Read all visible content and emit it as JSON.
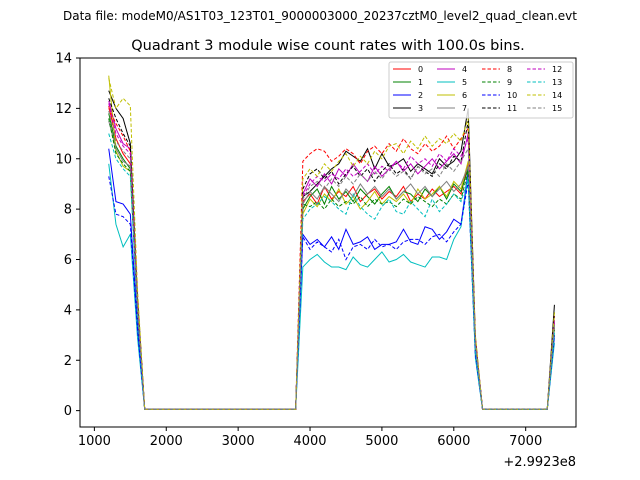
{
  "figure": {
    "suptitle": "Data file: modeM0/AS1T03_123T01_9000003000_20237cztM0_level2_quad_clean.evt"
  },
  "chart_data": {
    "type": "line",
    "title": "Quadrant 3 module wise count rates with 100.0s bins.",
    "xlabel": "",
    "ylabel": "",
    "x_offset_label": "+2.9923e8",
    "xlim": [
      800,
      7700
    ],
    "ylim": [
      -0.65,
      14
    ],
    "xticks": [
      1000,
      2000,
      3000,
      4000,
      5000,
      6000,
      7000
    ],
    "yticks": [
      0,
      2,
      4,
      6,
      8,
      10,
      12,
      14
    ],
    "x": [
      1200,
      1300,
      1400,
      1500,
      1600,
      1700,
      1800,
      1900,
      2000,
      2100,
      2200,
      2300,
      2400,
      2500,
      2600,
      2700,
      2800,
      2900,
      3000,
      3100,
      3200,
      3300,
      3400,
      3500,
      3600,
      3700,
      3800,
      3900,
      4000,
      4100,
      4200,
      4300,
      4400,
      4500,
      4600,
      4700,
      4800,
      4900,
      5000,
      5100,
      5200,
      5300,
      5400,
      5500,
      5600,
      5700,
      5800,
      5900,
      6000,
      6100,
      6200,
      6300,
      6400,
      6500,
      6600,
      6700,
      6800,
      6900,
      7000,
      7100,
      7200,
      7300,
      7400
    ],
    "legend_position": "upper-right",
    "series": [
      {
        "name": "0",
        "color": "#ff0000",
        "dash": "solid",
        "values": [
          12.1,
          10.8,
          10.2,
          9.8,
          4.2,
          0.05,
          0.05,
          0.05,
          0.05,
          0.05,
          0.05,
          0.05,
          0.05,
          0.05,
          0.05,
          0.05,
          0.05,
          0.05,
          0.05,
          0.05,
          0.05,
          0.05,
          0.05,
          0.05,
          0.05,
          0.05,
          0.05,
          8.3,
          8.6,
          8.2,
          8.9,
          8.4,
          8.7,
          8.5,
          8.9,
          8.3,
          8.6,
          8.8,
          8.4,
          8.7,
          8.5,
          8.9,
          8.3,
          8.6,
          8.4,
          8.8,
          8.5,
          8.7,
          8.9,
          8.6,
          9.8,
          2.7,
          0.05,
          0.05,
          0.05,
          0.05,
          0.05,
          0.05,
          0.05,
          0.05,
          0.05,
          0.05,
          3.5
        ]
      },
      {
        "name": "1",
        "color": "#008000",
        "dash": "solid",
        "values": [
          11.8,
          10.5,
          10.0,
          9.6,
          4.0,
          0.05,
          0.05,
          0.05,
          0.05,
          0.05,
          0.05,
          0.05,
          0.05,
          0.05,
          0.05,
          0.05,
          0.05,
          0.05,
          0.05,
          0.05,
          0.05,
          0.05,
          0.05,
          0.05,
          0.05,
          0.05,
          0.05,
          8.0,
          8.5,
          8.8,
          8.2,
          8.9,
          8.4,
          8.7,
          8.3,
          8.8,
          8.5,
          8.2,
          8.6,
          8.9,
          8.4,
          8.7,
          8.6,
          8.3,
          8.8,
          8.5,
          8.9,
          8.4,
          9.0,
          8.7,
          9.6,
          2.6,
          0.05,
          0.05,
          0.05,
          0.05,
          0.05,
          0.05,
          0.05,
          0.05,
          0.05,
          0.05,
          3.3
        ]
      },
      {
        "name": "2",
        "color": "#0000ff",
        "dash": "solid",
        "values": [
          10.4,
          8.3,
          8.2,
          7.8,
          3.4,
          0.05,
          0.05,
          0.05,
          0.05,
          0.05,
          0.05,
          0.05,
          0.05,
          0.05,
          0.05,
          0.05,
          0.05,
          0.05,
          0.05,
          0.05,
          0.05,
          0.05,
          0.05,
          0.05,
          0.05,
          0.05,
          0.05,
          7.0,
          6.6,
          6.8,
          6.5,
          6.9,
          6.4,
          7.2,
          6.6,
          6.7,
          6.9,
          6.4,
          6.6,
          6.6,
          6.7,
          7.2,
          6.7,
          6.6,
          7.3,
          7.2,
          6.8,
          7.1,
          7.6,
          7.4,
          9.5,
          2.3,
          0.05,
          0.05,
          0.05,
          0.05,
          0.05,
          0.05,
          0.05,
          0.05,
          0.05,
          0.05,
          3.0
        ]
      },
      {
        "name": "3",
        "color": "#000000",
        "dash": "solid",
        "values": [
          12.7,
          12.0,
          11.6,
          10.6,
          4.5,
          0.05,
          0.05,
          0.05,
          0.05,
          0.05,
          0.05,
          0.05,
          0.05,
          0.05,
          0.05,
          0.05,
          0.05,
          0.05,
          0.05,
          0.05,
          0.05,
          0.05,
          0.05,
          0.05,
          0.05,
          0.05,
          0.05,
          8.5,
          8.7,
          9.0,
          9.3,
          9.6,
          9.8,
          10.3,
          10.1,
          9.9,
          10.4,
          9.6,
          10.2,
          9.7,
          9.8,
          10.0,
          9.5,
          9.8,
          9.6,
          9.4,
          10.0,
          9.7,
          9.9,
          10.3,
          12.0,
          2.9,
          0.05,
          0.05,
          0.05,
          0.05,
          0.05,
          0.05,
          0.05,
          0.05,
          0.05,
          0.05,
          4.2
        ]
      },
      {
        "name": "4",
        "color": "#bf00bf",
        "dash": "solid",
        "values": [
          12.3,
          11.2,
          10.6,
          10.4,
          4.3,
          0.05,
          0.05,
          0.05,
          0.05,
          0.05,
          0.05,
          0.05,
          0.05,
          0.05,
          0.05,
          0.05,
          0.05,
          0.05,
          0.05,
          0.05,
          0.05,
          0.05,
          0.05,
          0.05,
          0.05,
          0.05,
          0.05,
          8.6,
          9.2,
          8.9,
          9.4,
          9.0,
          9.6,
          9.3,
          9.8,
          9.4,
          9.1,
          9.7,
          9.3,
          9.6,
          9.9,
          9.5,
          9.8,
          9.4,
          9.7,
          10.0,
          9.6,
          9.9,
          10.2,
          9.8,
          11.0,
          2.8,
          0.05,
          0.05,
          0.05,
          0.05,
          0.05,
          0.05,
          0.05,
          0.05,
          0.05,
          0.05,
          3.6
        ]
      },
      {
        "name": "5",
        "color": "#00bfbf",
        "dash": "solid",
        "values": [
          9.8,
          7.4,
          6.5,
          7.0,
          2.9,
          0.05,
          0.05,
          0.05,
          0.05,
          0.05,
          0.05,
          0.05,
          0.05,
          0.05,
          0.05,
          0.05,
          0.05,
          0.05,
          0.05,
          0.05,
          0.05,
          0.05,
          0.05,
          0.05,
          0.05,
          0.05,
          0.05,
          5.7,
          6.0,
          6.2,
          5.9,
          5.7,
          5.7,
          5.6,
          6.1,
          5.8,
          5.7,
          6.0,
          6.3,
          5.9,
          6.0,
          6.2,
          5.9,
          5.8,
          5.7,
          6.1,
          6.1,
          6.0,
          6.8,
          7.3,
          9.3,
          2.1,
          0.05,
          0.05,
          0.05,
          0.05,
          0.05,
          0.05,
          0.05,
          0.05,
          0.05,
          0.05,
          2.7
        ]
      },
      {
        "name": "6",
        "color": "#bfbf00",
        "dash": "solid",
        "values": [
          13.3,
          10.3,
          9.7,
          9.5,
          4.1,
          0.05,
          0.05,
          0.05,
          0.05,
          0.05,
          0.05,
          0.05,
          0.05,
          0.05,
          0.05,
          0.05,
          0.05,
          0.05,
          0.05,
          0.05,
          0.05,
          0.05,
          0.05,
          0.05,
          0.05,
          0.05,
          0.05,
          7.8,
          8.4,
          8.1,
          8.6,
          8.3,
          8.8,
          8.2,
          8.5,
          8.0,
          8.3,
          8.7,
          8.2,
          8.5,
          8.3,
          8.6,
          8.2,
          8.8,
          8.4,
          8.6,
          8.9,
          8.5,
          9.1,
          8.8,
          9.9,
          2.6,
          0.05,
          0.05,
          0.05,
          0.05,
          0.05,
          0.05,
          0.05,
          0.05,
          0.05,
          0.05,
          3.4
        ]
      },
      {
        "name": "7",
        "color": "#808080",
        "dash": "solid",
        "values": [
          11.5,
          10.4,
          9.9,
          9.7,
          4.1,
          0.05,
          0.05,
          0.05,
          0.05,
          0.05,
          0.05,
          0.05,
          0.05,
          0.05,
          0.05,
          0.05,
          0.05,
          0.05,
          0.05,
          0.05,
          0.05,
          0.05,
          0.05,
          0.05,
          0.05,
          0.05,
          0.05,
          8.2,
          8.7,
          8.4,
          8.9,
          8.6,
          8.3,
          8.8,
          8.5,
          9.0,
          8.6,
          8.9,
          8.5,
          8.8,
          8.4,
          8.7,
          9.0,
          8.6,
          8.9,
          8.5,
          8.8,
          9.1,
          8.7,
          9.0,
          9.7,
          2.6,
          0.05,
          0.05,
          0.05,
          0.05,
          0.05,
          0.05,
          0.05,
          0.05,
          0.05,
          0.05,
          3.4
        ]
      },
      {
        "name": "8",
        "color": "#ff0000",
        "dash": "dashed",
        "values": [
          12.0,
          11.4,
          10.9,
          10.3,
          4.4,
          0.05,
          0.05,
          0.05,
          0.05,
          0.05,
          0.05,
          0.05,
          0.05,
          0.05,
          0.05,
          0.05,
          0.05,
          0.05,
          0.05,
          0.05,
          0.05,
          0.05,
          0.05,
          0.05,
          0.05,
          0.05,
          0.05,
          9.9,
          10.2,
          10.4,
          10.3,
          9.9,
          10.1,
          10.4,
          10.2,
          9.8,
          10.3,
          10.5,
          10.2,
          10.6,
          10.3,
          10.8,
          10.4,
          10.2,
          10.6,
          10.3,
          10.5,
          10.9,
          10.4,
          10.8,
          11.2,
          2.9,
          0.05,
          0.05,
          0.05,
          0.05,
          0.05,
          0.05,
          0.05,
          0.05,
          0.05,
          0.05,
          3.8
        ]
      },
      {
        "name": "9",
        "color": "#008000",
        "dash": "dashed",
        "values": [
          11.6,
          10.2,
          9.8,
          9.5,
          3.9,
          0.05,
          0.05,
          0.05,
          0.05,
          0.05,
          0.05,
          0.05,
          0.05,
          0.05,
          0.05,
          0.05,
          0.05,
          0.05,
          0.05,
          0.05,
          0.05,
          0.05,
          0.05,
          0.05,
          0.05,
          0.05,
          0.05,
          8.2,
          8.1,
          8.3,
          8.0,
          8.4,
          8.1,
          8.3,
          8.2,
          8.5,
          8.1,
          8.4,
          8.2,
          8.3,
          8.1,
          8.4,
          8.2,
          8.5,
          8.3,
          8.1,
          8.4,
          8.2,
          8.6,
          8.4,
          9.5,
          2.5,
          0.05,
          0.05,
          0.05,
          0.05,
          0.05,
          0.05,
          0.05,
          0.05,
          0.05,
          0.05,
          3.2
        ]
      },
      {
        "name": "10",
        "color": "#0000ff",
        "dash": "dashed",
        "values": [
          9.3,
          7.8,
          7.7,
          7.4,
          3.2,
          0.05,
          0.05,
          0.05,
          0.05,
          0.05,
          0.05,
          0.05,
          0.05,
          0.05,
          0.05,
          0.05,
          0.05,
          0.05,
          0.05,
          0.05,
          0.05,
          0.05,
          0.05,
          0.05,
          0.05,
          0.05,
          0.05,
          6.9,
          6.4,
          6.7,
          6.5,
          6.3,
          6.8,
          6.0,
          6.5,
          6.6,
          6.4,
          6.8,
          6.5,
          6.6,
          6.4,
          6.7,
          6.8,
          6.8,
          6.6,
          6.9,
          7.0,
          6.7,
          7.1,
          7.4,
          9.1,
          2.2,
          0.05,
          0.05,
          0.05,
          0.05,
          0.05,
          0.05,
          0.05,
          0.05,
          0.05,
          0.05,
          2.9
        ]
      },
      {
        "name": "11",
        "color": "#000000",
        "dash": "dashed",
        "values": [
          12.4,
          11.6,
          11.0,
          10.5,
          4.4,
          0.05,
          0.05,
          0.05,
          0.05,
          0.05,
          0.05,
          0.05,
          0.05,
          0.05,
          0.05,
          0.05,
          0.05,
          0.05,
          0.05,
          0.05,
          0.05,
          0.05,
          0.05,
          0.05,
          0.05,
          0.05,
          0.05,
          8.8,
          9.4,
          9.6,
          9.2,
          9.5,
          9.0,
          9.4,
          9.7,
          9.3,
          9.6,
          9.1,
          9.5,
          9.8,
          9.4,
          9.6,
          9.2,
          9.7,
          9.5,
          9.3,
          9.8,
          9.6,
          10.1,
          9.9,
          11.5,
          2.8,
          0.05,
          0.05,
          0.05,
          0.05,
          0.05,
          0.05,
          0.05,
          0.05,
          0.05,
          0.05,
          3.9
        ]
      },
      {
        "name": "12",
        "color": "#bf00bf",
        "dash": "dashed",
        "values": [
          12.2,
          11.0,
          10.5,
          10.2,
          4.2,
          0.05,
          0.05,
          0.05,
          0.05,
          0.05,
          0.05,
          0.05,
          0.05,
          0.05,
          0.05,
          0.05,
          0.05,
          0.05,
          0.05,
          0.05,
          0.05,
          0.05,
          0.05,
          0.05,
          0.05,
          0.05,
          0.05,
          8.5,
          9.0,
          9.3,
          9.1,
          9.4,
          9.2,
          9.6,
          9.3,
          9.5,
          9.8,
          9.4,
          9.7,
          9.5,
          9.9,
          9.6,
          10.1,
          9.8,
          10.0,
          9.7,
          10.2,
          9.9,
          10.4,
          10.1,
          10.8,
          2.7,
          0.05,
          0.05,
          0.05,
          0.05,
          0.05,
          0.05,
          0.05,
          0.05,
          0.05,
          0.05,
          3.6
        ]
      },
      {
        "name": "13",
        "color": "#00bfbf",
        "dash": "dashed",
        "values": [
          11.0,
          10.0,
          9.6,
          9.3,
          3.8,
          0.05,
          0.05,
          0.05,
          0.05,
          0.05,
          0.05,
          0.05,
          0.05,
          0.05,
          0.05,
          0.05,
          0.05,
          0.05,
          0.05,
          0.05,
          0.05,
          0.05,
          0.05,
          0.05,
          0.05,
          0.05,
          0.05,
          7.6,
          8.0,
          8.2,
          8.5,
          8.3,
          8.0,
          7.8,
          8.6,
          8.1,
          7.8,
          7.6,
          8.1,
          8.4,
          7.9,
          7.8,
          8.3,
          8.0,
          7.7,
          8.4,
          7.9,
          8.2,
          8.6,
          8.3,
          9.2,
          2.4,
          0.05,
          0.05,
          0.05,
          0.05,
          0.05,
          0.05,
          0.05,
          0.05,
          0.05,
          0.05,
          3.1
        ]
      },
      {
        "name": "14",
        "color": "#bfbf00",
        "dash": "dashed",
        "values": [
          13.2,
          12.0,
          12.4,
          12.1,
          4.8,
          0.05,
          0.05,
          0.05,
          0.05,
          0.05,
          0.05,
          0.05,
          0.05,
          0.05,
          0.05,
          0.05,
          0.05,
          0.05,
          0.05,
          0.05,
          0.05,
          0.05,
          0.05,
          0.05,
          0.05,
          0.05,
          0.05,
          9.2,
          9.6,
          9.3,
          9.8,
          9.5,
          9.9,
          10.2,
          9.7,
          10.1,
          9.8,
          10.3,
          10.0,
          10.5,
          10.6,
          10.2,
          10.7,
          10.4,
          10.9,
          10.5,
          10.8,
          10.6,
          11.0,
          10.7,
          11.6,
          3.0,
          0.05,
          0.05,
          0.05,
          0.05,
          0.05,
          0.05,
          0.05,
          0.05,
          0.05,
          0.05,
          3.9
        ]
      },
      {
        "name": "15",
        "color": "#808080",
        "dash": "dashed",
        "values": [
          11.9,
          10.7,
          10.3,
          10.0,
          4.1,
          0.05,
          0.05,
          0.05,
          0.05,
          0.05,
          0.05,
          0.05,
          0.05,
          0.05,
          0.05,
          0.05,
          0.05,
          0.05,
          0.05,
          0.05,
          0.05,
          0.05,
          0.05,
          0.05,
          0.05,
          0.05,
          0.05,
          8.4,
          8.9,
          9.1,
          8.8,
          9.2,
          8.9,
          9.3,
          9.0,
          9.4,
          9.1,
          9.5,
          9.2,
          9.6,
          9.3,
          9.5,
          9.2,
          9.7,
          9.4,
          9.6,
          9.3,
          9.8,
          9.5,
          9.9,
          10.4,
          2.7,
          0.05,
          0.05,
          0.05,
          0.05,
          0.05,
          0.05,
          0.05,
          0.05,
          0.05,
          0.05,
          3.5
        ]
      }
    ]
  }
}
